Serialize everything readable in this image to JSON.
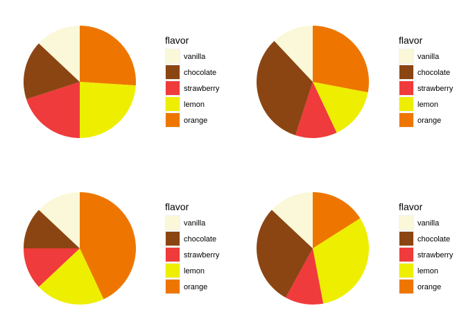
{
  "legend": {
    "title": "flavor",
    "entries": [
      {
        "label": "vanilla",
        "color": "#FAF8D8"
      },
      {
        "label": "chocolate",
        "color": "#8B4513"
      },
      {
        "label": "strawberry",
        "color": "#EF3B3B"
      },
      {
        "label": "lemon",
        "color": "#EEEE00"
      },
      {
        "label": "orange",
        "color": "#EE7600"
      }
    ]
  },
  "chart_data": [
    {
      "type": "pie",
      "legend_position": "right",
      "categories": [
        "vanilla",
        "chocolate",
        "strawberry",
        "lemon",
        "orange"
      ],
      "values": [
        13,
        17,
        20,
        24,
        26
      ]
    },
    {
      "type": "pie",
      "legend_position": "right",
      "categories": [
        "vanilla",
        "chocolate",
        "strawberry",
        "lemon",
        "orange"
      ],
      "values": [
        12,
        33,
        12,
        15,
        28
      ]
    },
    {
      "type": "pie",
      "legend_position": "right",
      "categories": [
        "vanilla",
        "chocolate",
        "strawberry",
        "lemon",
        "orange"
      ],
      "values": [
        13,
        12,
        12,
        20,
        43
      ]
    },
    {
      "type": "pie",
      "legend_position": "right",
      "categories": [
        "vanilla",
        "chocolate",
        "strawberry",
        "lemon",
        "orange"
      ],
      "values": [
        13,
        29,
        11,
        31,
        16
      ]
    }
  ]
}
